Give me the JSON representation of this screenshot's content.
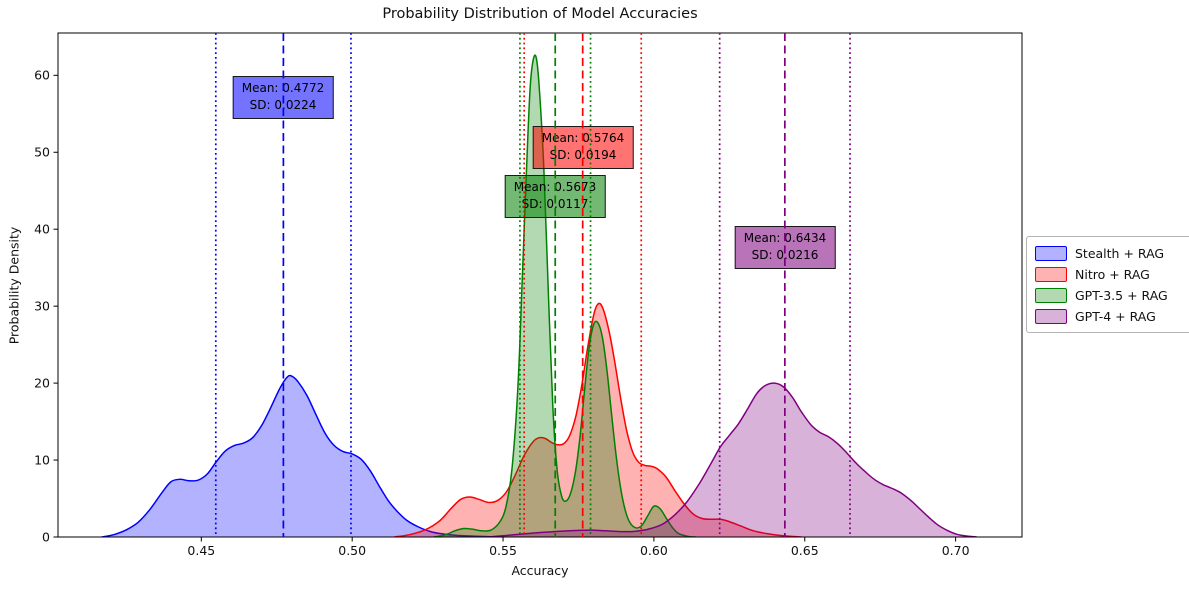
{
  "title": "Probability Distribution of Model Accuracies",
  "xlabel": "Accuracy",
  "ylabel": "Probability Density",
  "chart_data": {
    "type": "area",
    "subtype": "kde-density-curves",
    "title": "Probability Distribution of Model Accuracies",
    "xlabel": "Accuracy",
    "ylabel": "Probability Density",
    "xlim": [
      0.4025,
      0.722
    ],
    "ylim": [
      0,
      65.5
    ],
    "xticks": [
      0.45,
      0.5,
      0.55,
      0.6,
      0.65,
      0.7
    ],
    "xtick_labels": [
      "0.45",
      "0.50",
      "0.55",
      "0.60",
      "0.65",
      "0.70"
    ],
    "yticks": [
      0,
      10,
      20,
      30,
      40,
      50,
      60
    ],
    "grid": false,
    "legend_position": "right-outside-center",
    "vline_styles": {
      "mean": "dashed",
      "mean_plus_minus_sd": "dotted"
    },
    "series": [
      {
        "name": "Stealth + RAG",
        "color": "#0000ff",
        "fill_alpha": 0.3,
        "mean": 0.4772,
        "sd": 0.0224,
        "annotation": {
          "line1": "Mean: 0.4772",
          "line2": "SD: 0.0224"
        },
        "points": [
          [
            0.417,
            0.0
          ],
          [
            0.421,
            0.3
          ],
          [
            0.425,
            0.9
          ],
          [
            0.429,
            1.9
          ],
          [
            0.433,
            3.6
          ],
          [
            0.437,
            5.8
          ],
          [
            0.44,
            7.2
          ],
          [
            0.443,
            7.5
          ],
          [
            0.446,
            7.3
          ],
          [
            0.449,
            7.4
          ],
          [
            0.452,
            8.2
          ],
          [
            0.455,
            9.8
          ],
          [
            0.458,
            11.2
          ],
          [
            0.461,
            11.9
          ],
          [
            0.464,
            12.2
          ],
          [
            0.467,
            12.9
          ],
          [
            0.47,
            14.5
          ],
          [
            0.473,
            16.8
          ],
          [
            0.476,
            19.3
          ],
          [
            0.4785,
            20.8
          ],
          [
            0.48,
            20.9
          ],
          [
            0.482,
            20.2
          ],
          [
            0.485,
            18.4
          ],
          [
            0.488,
            15.9
          ],
          [
            0.491,
            13.5
          ],
          [
            0.494,
            11.9
          ],
          [
            0.497,
            11.1
          ],
          [
            0.5,
            10.8
          ],
          [
            0.503,
            10.1
          ],
          [
            0.506,
            8.6
          ],
          [
            0.509,
            6.6
          ],
          [
            0.512,
            4.7
          ],
          [
            0.515,
            3.3
          ],
          [
            0.518,
            2.2
          ],
          [
            0.522,
            1.3
          ],
          [
            0.526,
            0.7
          ],
          [
            0.53,
            0.4
          ],
          [
            0.535,
            0.2
          ],
          [
            0.541,
            0.1
          ],
          [
            0.548,
            0.0
          ]
        ]
      },
      {
        "name": "Nitro + RAG",
        "color": "#ff0000",
        "fill_alpha": 0.3,
        "mean": 0.5764,
        "sd": 0.0194,
        "annotation": {
          "line1": "Mean: 0.5764",
          "line2": "SD: 0.0194"
        },
        "points": [
          [
            0.514,
            0.0
          ],
          [
            0.519,
            0.3
          ],
          [
            0.524,
            0.9
          ],
          [
            0.529,
            2.1
          ],
          [
            0.533,
            3.8
          ],
          [
            0.536,
            4.9
          ],
          [
            0.539,
            5.2
          ],
          [
            0.542,
            4.9
          ],
          [
            0.545,
            4.5
          ],
          [
            0.548,
            4.7
          ],
          [
            0.551,
            5.8
          ],
          [
            0.554,
            8.0
          ],
          [
            0.557,
            10.6
          ],
          [
            0.56,
            12.4
          ],
          [
            0.562,
            12.9
          ],
          [
            0.564,
            12.8
          ],
          [
            0.566,
            12.3
          ],
          [
            0.568,
            12.0
          ],
          [
            0.57,
            12.1
          ],
          [
            0.572,
            13.1
          ],
          [
            0.574,
            15.5
          ],
          [
            0.576,
            19.5
          ],
          [
            0.578,
            24.5
          ],
          [
            0.58,
            28.8
          ],
          [
            0.5815,
            30.3
          ],
          [
            0.583,
            29.8
          ],
          [
            0.585,
            27.0
          ],
          [
            0.587,
            22.8
          ],
          [
            0.589,
            18.0
          ],
          [
            0.591,
            13.8
          ],
          [
            0.593,
            11.0
          ],
          [
            0.595,
            9.7
          ],
          [
            0.597,
            9.3
          ],
          [
            0.599,
            9.2
          ],
          [
            0.601,
            8.9
          ],
          [
            0.604,
            7.8
          ],
          [
            0.607,
            6.0
          ],
          [
            0.61,
            4.3
          ],
          [
            0.613,
            3.0
          ],
          [
            0.616,
            2.4
          ],
          [
            0.619,
            2.3
          ],
          [
            0.622,
            2.3
          ],
          [
            0.625,
            2.0
          ],
          [
            0.629,
            1.4
          ],
          [
            0.633,
            0.8
          ],
          [
            0.638,
            0.4
          ],
          [
            0.643,
            0.15
          ],
          [
            0.649,
            0.0
          ]
        ]
      },
      {
        "name": "GPT-3.5 + RAG",
        "color": "#008000",
        "fill_alpha": 0.3,
        "mean": 0.5673,
        "sd": 0.0117,
        "annotation": {
          "line1": "Mean: 0.5673",
          "line2": "SD: 0.0117"
        },
        "points": [
          [
            0.527,
            0.0
          ],
          [
            0.531,
            0.3
          ],
          [
            0.534,
            0.8
          ],
          [
            0.537,
            1.1
          ],
          [
            0.54,
            1.0
          ],
          [
            0.543,
            0.8
          ],
          [
            0.546,
            0.9
          ],
          [
            0.549,
            2.0
          ],
          [
            0.551,
            4.0
          ],
          [
            0.553,
            9.0
          ],
          [
            0.555,
            20.0
          ],
          [
            0.5565,
            35.0
          ],
          [
            0.558,
            50.0
          ],
          [
            0.559,
            58.5
          ],
          [
            0.56,
            62.0
          ],
          [
            0.561,
            62.3
          ],
          [
            0.562,
            58.5
          ],
          [
            0.5635,
            48.0
          ],
          [
            0.565,
            32.0
          ],
          [
            0.5665,
            17.0
          ],
          [
            0.568,
            8.5
          ],
          [
            0.5695,
            5.2
          ],
          [
            0.571,
            4.7
          ],
          [
            0.5725,
            5.8
          ],
          [
            0.574,
            8.5
          ],
          [
            0.5755,
            13.0
          ],
          [
            0.577,
            19.0
          ],
          [
            0.5785,
            24.5
          ],
          [
            0.58,
            27.6
          ],
          [
            0.5815,
            27.8
          ],
          [
            0.583,
            25.8
          ],
          [
            0.5845,
            21.5
          ],
          [
            0.586,
            15.8
          ],
          [
            0.5875,
            10.5
          ],
          [
            0.589,
            6.3
          ],
          [
            0.5905,
            3.5
          ],
          [
            0.592,
            1.9
          ],
          [
            0.594,
            1.2
          ],
          [
            0.596,
            1.5
          ],
          [
            0.598,
            2.8
          ],
          [
            0.6,
            4.0
          ],
          [
            0.602,
            3.7
          ],
          [
            0.604,
            2.5
          ],
          [
            0.606,
            1.3
          ],
          [
            0.608,
            0.5
          ],
          [
            0.611,
            0.1
          ],
          [
            0.614,
            0.0
          ]
        ]
      },
      {
        "name": "GPT-4 + RAG",
        "color": "#800080",
        "fill_alpha": 0.3,
        "mean": 0.6434,
        "sd": 0.0216,
        "annotation": {
          "line1": "Mean: 0.6434",
          "line2": "SD: 0.0216"
        },
        "points": [
          [
            0.545,
            0.0
          ],
          [
            0.551,
            0.2
          ],
          [
            0.557,
            0.4
          ],
          [
            0.563,
            0.6
          ],
          [
            0.569,
            0.75
          ],
          [
            0.574,
            0.85
          ],
          [
            0.579,
            0.9
          ],
          [
            0.584,
            0.8
          ],
          [
            0.589,
            0.7
          ],
          [
            0.594,
            0.75
          ],
          [
            0.599,
            1.1
          ],
          [
            0.603,
            1.7
          ],
          [
            0.607,
            2.9
          ],
          [
            0.611,
            4.6
          ],
          [
            0.615,
            6.9
          ],
          [
            0.619,
            9.6
          ],
          [
            0.622,
            11.7
          ],
          [
            0.625,
            13.2
          ],
          [
            0.628,
            14.7
          ],
          [
            0.631,
            16.6
          ],
          [
            0.634,
            18.6
          ],
          [
            0.637,
            19.7
          ],
          [
            0.64,
            20.0
          ],
          [
            0.643,
            19.5
          ],
          [
            0.646,
            18.1
          ],
          [
            0.649,
            16.2
          ],
          [
            0.652,
            14.6
          ],
          [
            0.655,
            13.6
          ],
          [
            0.658,
            13.0
          ],
          [
            0.661,
            12.1
          ],
          [
            0.664,
            10.9
          ],
          [
            0.667,
            9.6
          ],
          [
            0.67,
            8.5
          ],
          [
            0.673,
            7.5
          ],
          [
            0.676,
            6.8
          ],
          [
            0.679,
            6.3
          ],
          [
            0.682,
            5.7
          ],
          [
            0.685,
            4.8
          ],
          [
            0.688,
            3.7
          ],
          [
            0.691,
            2.6
          ],
          [
            0.694,
            1.6
          ],
          [
            0.697,
            0.9
          ],
          [
            0.7,
            0.4
          ],
          [
            0.703,
            0.15
          ],
          [
            0.707,
            0.0
          ]
        ]
      }
    ]
  }
}
